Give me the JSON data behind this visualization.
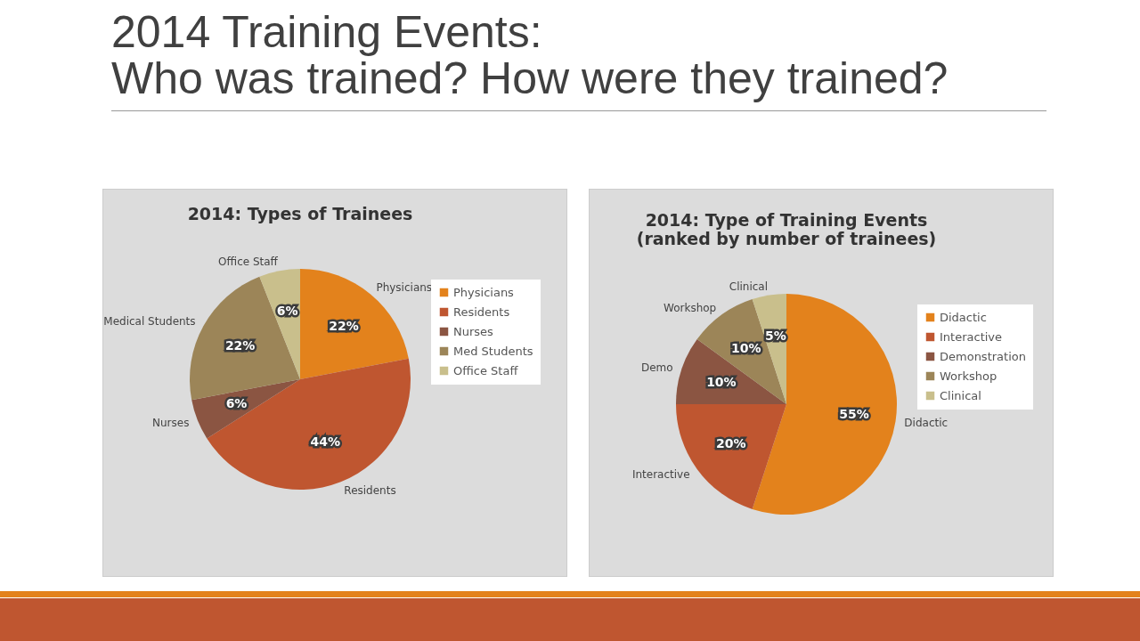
{
  "chart_data": [
    {
      "type": "other",
      "title": "2014 Training Events:\nWho was trained? How were they trained?"
    },
    {
      "type": "pie",
      "title": "2014: Types of Trainees",
      "categories": [
        "Physicians",
        "Residents",
        "Nurses",
        "Med Students",
        "Office Staff"
      ],
      "values": [
        22,
        44,
        6,
        22,
        6
      ],
      "value_labels": [
        "22%",
        "44%",
        "6%",
        "22%",
        "6%"
      ],
      "colors": [
        "#e3821c",
        "#bf5630",
        "#8b5542",
        "#9c8558",
        "#c9bf8c"
      ],
      "legend": "right",
      "annotations": [
        "Physicians",
        "Residents",
        "Nurses",
        "Medical Students",
        "Office Staff"
      ]
    },
    {
      "type": "pie",
      "title": "2014: Type of Training Events\n(ranked by number of trainees)",
      "categories": [
        "Didactic",
        "Interactive",
        "Demonstration",
        "Workshop",
        "Clinical"
      ],
      "values": [
        55,
        20,
        10,
        10,
        5
      ],
      "value_labels": [
        "55%",
        "20%",
        "10%",
        "10%",
        "5%"
      ],
      "colors": [
        "#e3821c",
        "#bf5630",
        "#8b5542",
        "#9c8558",
        "#c9bf8c"
      ],
      "legend": "right",
      "annotations": [
        "Didactic",
        "Interactive",
        "Demo",
        "Workshop",
        "Clinical"
      ]
    }
  ]
}
